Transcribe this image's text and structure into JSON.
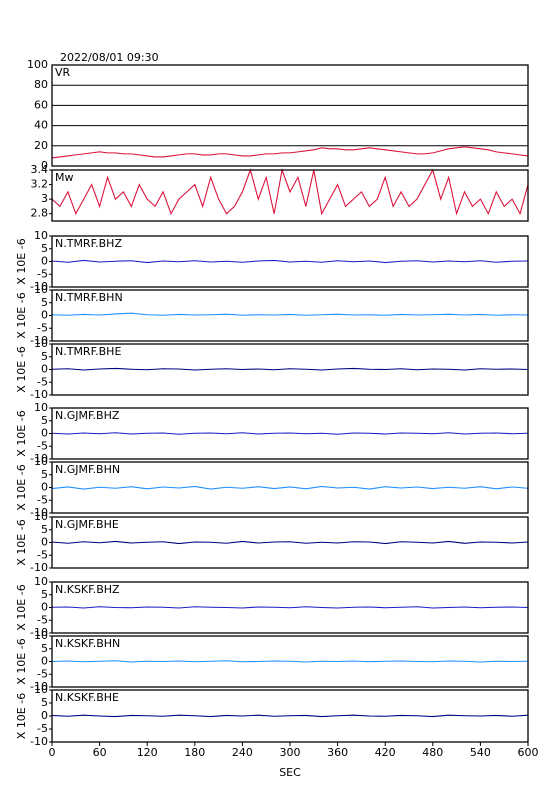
{
  "chart_data": [
    {
      "type": "line",
      "title": "2022/08/01 09:30",
      "label": "VR",
      "color": "#dc143c",
      "grid": true,
      "xlim": [
        0,
        600
      ],
      "ylim": [
        0,
        100
      ],
      "yticks": [
        0,
        20,
        40,
        60,
        80,
        100
      ],
      "x": [
        0,
        10,
        20,
        30,
        40,
        50,
        60,
        70,
        80,
        90,
        100,
        110,
        120,
        130,
        140,
        150,
        160,
        170,
        180,
        190,
        200,
        210,
        220,
        230,
        240,
        250,
        260,
        270,
        280,
        290,
        300,
        310,
        320,
        330,
        340,
        350,
        360,
        370,
        380,
        390,
        400,
        410,
        420,
        430,
        440,
        450,
        460,
        470,
        480,
        490,
        500,
        510,
        520,
        530,
        540,
        550,
        560,
        570,
        580,
        590,
        600
      ],
      "values": [
        8,
        9,
        10,
        11,
        12,
        13,
        14,
        13,
        13,
        12,
        12,
        11,
        10,
        9,
        9,
        10,
        11,
        12,
        12,
        11,
        11,
        12,
        12,
        11,
        10,
        10,
        11,
        12,
        12,
        13,
        13,
        14,
        15,
        16,
        18,
        17,
        17,
        16,
        16,
        17,
        18,
        17,
        16,
        15,
        14,
        13,
        12,
        12,
        13,
        15,
        17,
        18,
        19,
        18,
        17,
        16,
        14,
        13,
        12,
        11,
        10
      ]
    },
    {
      "type": "line",
      "label": "Mw",
      "color": "#dc143c",
      "xlim": [
        0,
        600
      ],
      "ylim": [
        2.7,
        3.4
      ],
      "yticks": [
        2.8,
        3.0,
        3.2,
        3.4
      ],
      "x": [
        0,
        10,
        20,
        30,
        40,
        50,
        60,
        70,
        80,
        90,
        100,
        110,
        120,
        130,
        140,
        150,
        160,
        170,
        180,
        190,
        200,
        210,
        220,
        230,
        240,
        250,
        260,
        270,
        280,
        290,
        300,
        310,
        320,
        330,
        340,
        350,
        360,
        370,
        380,
        390,
        400,
        410,
        420,
        430,
        440,
        450,
        460,
        470,
        480,
        490,
        500,
        510,
        520,
        530,
        540,
        550,
        560,
        570,
        580,
        590,
        600
      ],
      "values": [
        3.0,
        2.9,
        3.1,
        2.8,
        3.0,
        3.2,
        2.9,
        3.3,
        3.0,
        3.1,
        2.9,
        3.2,
        3.0,
        2.9,
        3.1,
        2.8,
        3.0,
        3.1,
        3.2,
        2.9,
        3.3,
        3.0,
        2.8,
        2.9,
        3.1,
        3.4,
        3.0,
        3.3,
        2.8,
        3.4,
        3.1,
        3.3,
        2.9,
        3.4,
        2.8,
        3.0,
        3.2,
        2.9,
        3.0,
        3.1,
        2.9,
        3.0,
        3.3,
        2.9,
        3.1,
        2.9,
        3.0,
        3.2,
        3.4,
        3.0,
        3.3,
        2.8,
        3.1,
        2.9,
        3.0,
        2.8,
        3.1,
        2.9,
        3.0,
        2.8,
        3.2
      ]
    },
    {
      "type": "line",
      "label": "N.TMRF.BHZ",
      "ylabel": "X 10E -6",
      "color": "#1c1cc8",
      "xlim": [
        0,
        600
      ],
      "ylim": [
        -10,
        10
      ],
      "yticks": [
        10,
        5,
        0,
        -5,
        -10
      ],
      "x": [
        0,
        20,
        40,
        60,
        80,
        100,
        120,
        140,
        160,
        180,
        200,
        220,
        240,
        260,
        280,
        300,
        320,
        340,
        360,
        380,
        400,
        420,
        440,
        460,
        480,
        500,
        520,
        540,
        560,
        580,
        600
      ],
      "values": [
        0.2,
        -0.3,
        0.4,
        -0.2,
        0.1,
        0.3,
        -0.4,
        0.2,
        -0.1,
        0.3,
        -0.2,
        0.1,
        -0.3,
        0.2,
        0.4,
        -0.2,
        0.1,
        -0.3,
        0.3,
        -0.1,
        0.2,
        -0.4,
        0.1,
        0.3,
        -0.2,
        0.2,
        -0.1,
        0.3,
        -0.3,
        0.1,
        0.2
      ]
    },
    {
      "type": "line",
      "label": "N.TMRF.BHN",
      "ylabel": "X 10E -6",
      "color": "#1e90ff",
      "xlim": [
        0,
        600
      ],
      "ylim": [
        -10,
        10
      ],
      "yticks": [
        10,
        5,
        0,
        -5,
        -10
      ],
      "x": [
        0,
        20,
        40,
        60,
        80,
        100,
        120,
        140,
        160,
        180,
        200,
        220,
        240,
        260,
        280,
        300,
        320,
        340,
        360,
        380,
        400,
        420,
        440,
        460,
        480,
        500,
        520,
        540,
        560,
        580,
        600
      ],
      "values": [
        0.3,
        0.1,
        0.4,
        0.2,
        0.6,
        0.9,
        0.3,
        0.1,
        0.4,
        0.2,
        0.3,
        0.5,
        0.1,
        0.3,
        0.2,
        0.4,
        0.1,
        0.3,
        0.5,
        0.2,
        0.3,
        0.1,
        0.4,
        0.2,
        0.3,
        0.5,
        0.2,
        0.4,
        0.1,
        0.3,
        0.2
      ]
    },
    {
      "type": "line",
      "label": "N.TMRF.BHE",
      "ylabel": "X 10E -6",
      "color": "#000080",
      "xlim": [
        0,
        600
      ],
      "ylim": [
        -10,
        10
      ],
      "yticks": [
        10,
        5,
        0,
        -5,
        -10
      ],
      "x": [
        0,
        20,
        40,
        60,
        80,
        100,
        120,
        140,
        160,
        180,
        200,
        220,
        240,
        260,
        280,
        300,
        320,
        340,
        360,
        380,
        400,
        420,
        440,
        460,
        480,
        500,
        520,
        540,
        560,
        580,
        600
      ],
      "values": [
        0.1,
        0.3,
        -0.2,
        0.2,
        0.4,
        0.1,
        -0.1,
        0.3,
        0.2,
        -0.2,
        0.1,
        0.3,
        0.0,
        0.2,
        -0.1,
        0.3,
        0.1,
        -0.2,
        0.2,
        0.4,
        0.1,
        0.0,
        0.3,
        -0.1,
        0.2,
        0.1,
        -0.2,
        0.3,
        0.1,
        0.2,
        0.0
      ]
    },
    {
      "type": "line",
      "label": "N.GJMF.BHZ",
      "ylabel": "X 10E -6",
      "color": "#1c1cc8",
      "xlim": [
        0,
        600
      ],
      "ylim": [
        -10,
        10
      ],
      "yticks": [
        10,
        5,
        0,
        -5,
        -10
      ],
      "x": [
        0,
        20,
        40,
        60,
        80,
        100,
        120,
        140,
        160,
        180,
        200,
        220,
        240,
        260,
        280,
        300,
        320,
        340,
        360,
        380,
        400,
        420,
        440,
        460,
        480,
        500,
        520,
        540,
        560,
        580,
        600
      ],
      "values": [
        0.1,
        -0.2,
        0.2,
        -0.1,
        0.3,
        -0.2,
        0.1,
        0.2,
        -0.3,
        0.1,
        0.2,
        -0.1,
        0.3,
        -0.2,
        0.1,
        0.2,
        -0.1,
        0.1,
        -0.3,
        0.2,
        0.1,
        -0.2,
        0.2,
        0.1,
        -0.1,
        0.3,
        -0.2,
        0.1,
        0.2,
        -0.1,
        0.1
      ]
    },
    {
      "type": "line",
      "label": "N.GJMF.BHN",
      "ylabel": "X 10E -6",
      "color": "#1e90ff",
      "xlim": [
        0,
        600
      ],
      "ylim": [
        -10,
        10
      ],
      "yticks": [
        10,
        5,
        0,
        -5,
        -10
      ],
      "x": [
        0,
        20,
        40,
        60,
        80,
        100,
        120,
        140,
        160,
        180,
        200,
        220,
        240,
        260,
        280,
        300,
        320,
        340,
        360,
        380,
        400,
        420,
        440,
        460,
        480,
        500,
        520,
        540,
        560,
        580,
        600
      ],
      "values": [
        -0.4,
        0.2,
        -0.6,
        0.1,
        -0.3,
        0.3,
        -0.5,
        0.2,
        -0.2,
        0.4,
        -0.6,
        0.1,
        -0.3,
        0.3,
        -0.4,
        0.2,
        -0.5,
        0.4,
        -0.2,
        0.1,
        -0.6,
        0.3,
        -0.2,
        0.2,
        -0.4,
        0.1,
        -0.3,
        0.3,
        -0.5,
        0.2,
        -0.3
      ]
    },
    {
      "type": "line",
      "label": "N.GJMF.BHE",
      "ylabel": "X 10E -6",
      "color": "#000080",
      "xlim": [
        0,
        600
      ],
      "ylim": [
        -10,
        10
      ],
      "yticks": [
        10,
        5,
        0,
        -5,
        -10
      ],
      "x": [
        0,
        20,
        40,
        60,
        80,
        100,
        120,
        140,
        160,
        180,
        200,
        220,
        240,
        260,
        280,
        300,
        320,
        340,
        360,
        380,
        400,
        420,
        440,
        460,
        480,
        500,
        520,
        540,
        560,
        580,
        600
      ],
      "values": [
        0.2,
        -0.3,
        0.3,
        -0.1,
        0.4,
        -0.2,
        0.1,
        0.3,
        -0.4,
        0.2,
        0.1,
        -0.3,
        0.4,
        -0.2,
        0.2,
        0.3,
        -0.3,
        0.1,
        -0.2,
        0.3,
        0.2,
        -0.4,
        0.3,
        0.1,
        -0.2,
        0.4,
        -0.3,
        0.2,
        0.1,
        -0.2,
        0.2
      ]
    },
    {
      "type": "line",
      "label": "N.KSKF.BHZ",
      "ylabel": "X 10E -6",
      "color": "#1c1cc8",
      "xlim": [
        0,
        600
      ],
      "ylim": [
        -10,
        10
      ],
      "yticks": [
        10,
        5,
        0,
        -5,
        -10
      ],
      "x": [
        0,
        20,
        40,
        60,
        80,
        100,
        120,
        140,
        160,
        180,
        200,
        220,
        240,
        260,
        280,
        300,
        320,
        340,
        360,
        380,
        400,
        420,
        440,
        460,
        480,
        500,
        520,
        540,
        560,
        580,
        600
      ],
      "values": [
        0.1,
        0.2,
        -0.2,
        0.3,
        0.0,
        -0.1,
        0.2,
        0.1,
        -0.2,
        0.3,
        0.1,
        0.0,
        -0.2,
        0.2,
        0.1,
        -0.1,
        0.3,
        0.0,
        -0.2,
        0.1,
        0.2,
        -0.1,
        0.1,
        0.3,
        -0.2,
        0.0,
        0.2,
        -0.1,
        0.1,
        0.2,
        0.0
      ]
    },
    {
      "type": "line",
      "label": "N.KSKF.BHN",
      "ylabel": "X 10E -6",
      "color": "#1e90ff",
      "xlim": [
        0,
        600
      ],
      "ylim": [
        -10,
        10
      ],
      "yticks": [
        10,
        5,
        0,
        -5,
        -10
      ],
      "x": [
        0,
        20,
        40,
        60,
        80,
        100,
        120,
        140,
        160,
        180,
        200,
        220,
        240,
        260,
        280,
        300,
        320,
        340,
        360,
        380,
        400,
        420,
        440,
        460,
        480,
        500,
        520,
        540,
        560,
        580,
        600
      ],
      "values": [
        0.0,
        0.2,
        -0.1,
        0.1,
        0.3,
        -0.2,
        0.1,
        0.0,
        0.2,
        -0.1,
        0.1,
        0.3,
        -0.1,
        0.0,
        0.2,
        0.1,
        -0.2,
        0.1,
        0.0,
        0.2,
        -0.1,
        0.1,
        0.2,
        0.0,
        -0.1,
        0.2,
        0.1,
        -0.2,
        0.1,
        0.0,
        0.1
      ]
    },
    {
      "type": "line",
      "label": "N.KSKF.BHE",
      "ylabel": "X 10E -6",
      "color": "#000080",
      "xlim": [
        0,
        600
      ],
      "ylim": [
        -10,
        10
      ],
      "yticks": [
        10,
        5,
        0,
        -5,
        -10
      ],
      "xlabel": "SEC",
      "xticks": [
        0,
        60,
        120,
        180,
        240,
        300,
        360,
        420,
        480,
        540,
        600
      ],
      "x": [
        0,
        20,
        40,
        60,
        80,
        100,
        120,
        140,
        160,
        180,
        200,
        220,
        240,
        260,
        280,
        300,
        320,
        340,
        360,
        380,
        400,
        420,
        440,
        460,
        480,
        500,
        520,
        540,
        560,
        580,
        600
      ],
      "values": [
        0.2,
        -0.1,
        0.3,
        0.0,
        -0.2,
        0.2,
        0.1,
        -0.1,
        0.3,
        0.1,
        -0.2,
        0.2,
        0.0,
        0.3,
        -0.1,
        0.1,
        0.2,
        -0.2,
        0.1,
        0.3,
        0.0,
        -0.1,
        0.2,
        0.1,
        -0.2,
        0.3,
        0.1,
        0.0,
        0.2,
        -0.1,
        0.3
      ]
    }
  ]
}
